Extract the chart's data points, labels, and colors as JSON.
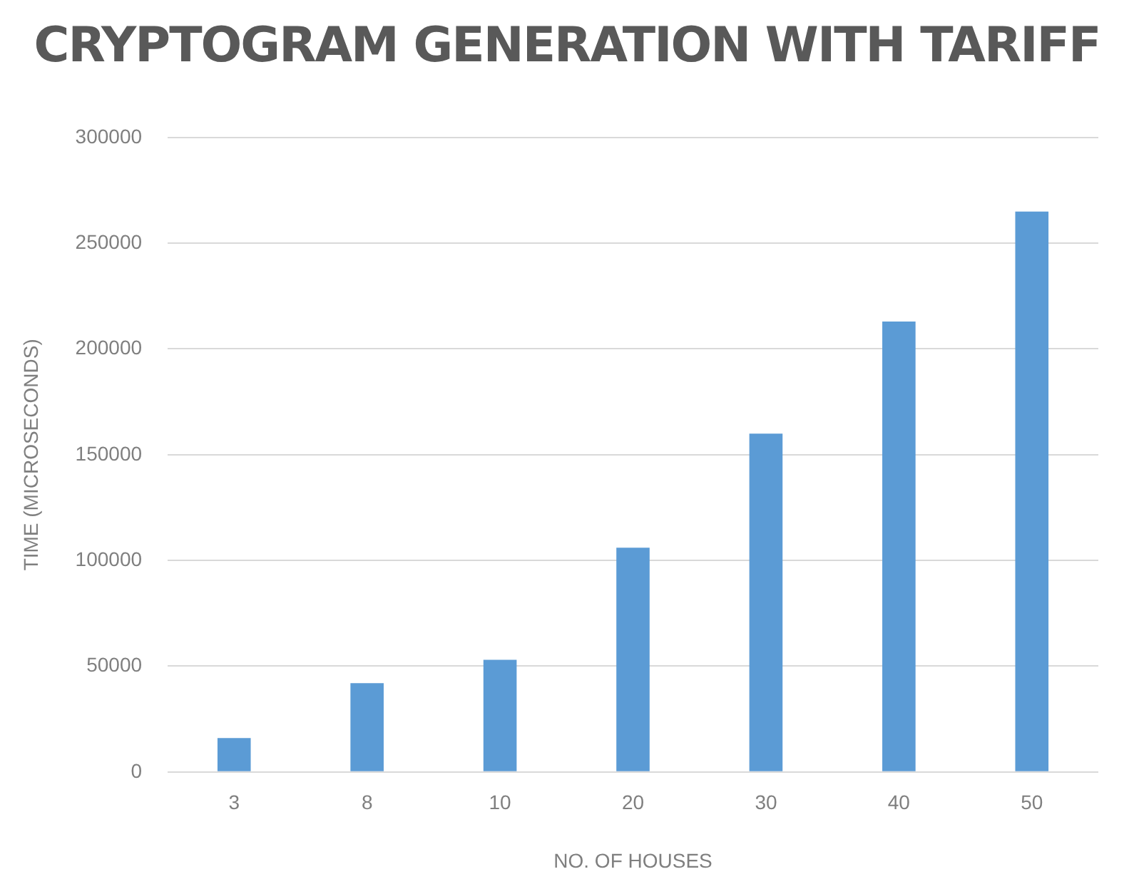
{
  "chart_data": {
    "type": "bar",
    "title": "CRYPTOGRAM GENERATION WITH TARIFF",
    "xlabel": "NO. OF HOUSES",
    "ylabel": "TIME (MICROSECONDS)",
    "categories": [
      "3",
      "8",
      "10",
      "20",
      "30",
      "40",
      "50"
    ],
    "values": [
      16000,
      42000,
      53000,
      106000,
      160000,
      213000,
      265000
    ],
    "color": "#5b9bd5",
    "ylim": [
      0,
      300000
    ],
    "yticks": [
      0,
      50000,
      100000,
      150000,
      200000,
      250000,
      300000
    ],
    "grid": "y"
  }
}
